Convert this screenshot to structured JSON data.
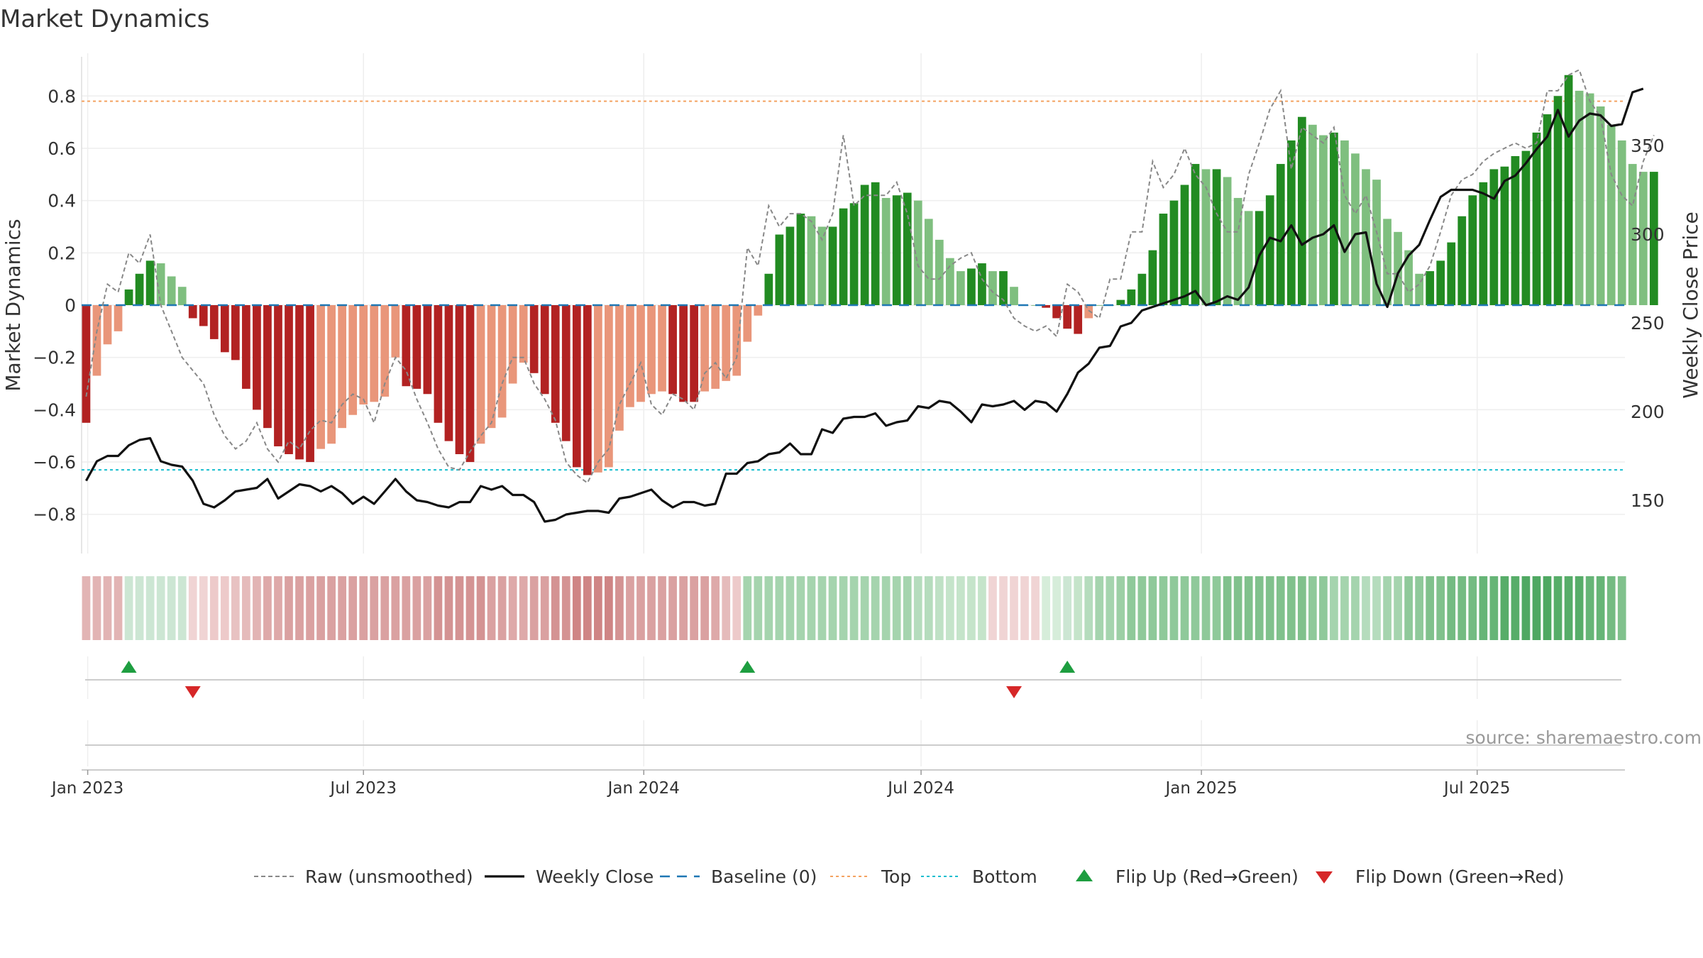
{
  "chart_data": {
    "type": "bar",
    "title": "Market Dynamics",
    "ylabel_left": "Market Dynamics",
    "ylabel_right": "Weekly Close Price",
    "ylim_left": [
      -0.95,
      0.95
    ],
    "ylim_right": [
      120,
      400
    ],
    "yticks_left": [
      -0.8,
      -0.6,
      -0.4,
      -0.2,
      0,
      0.2,
      0.4,
      0.6,
      0.8
    ],
    "yticks_left_labels": [
      "−0.8",
      "−0.6",
      "−0.4",
      "−0.2",
      "0",
      "0.2",
      "0.4",
      "0.6",
      "0.8"
    ],
    "yticks_right": [
      150,
      200,
      250,
      300,
      350
    ],
    "yticks_right_labels": [
      "150",
      "200",
      "250",
      "300",
      "350"
    ],
    "x_range": [
      "2022-12-28",
      "2025-10-06"
    ],
    "xticks": [
      {
        "date": "2023-01-01",
        "label": "Jan 2023"
      },
      {
        "date": "2023-07-01",
        "label": "Jul 2023"
      },
      {
        "date": "2024-01-01",
        "label": "Jan 2024"
      },
      {
        "date": "2024-07-01",
        "label": "Jul 2024"
      },
      {
        "date": "2025-01-01",
        "label": "Jan 2025"
      },
      {
        "date": "2025-07-01",
        "label": "Jul 2025"
      }
    ],
    "start_date": "2022-12-31",
    "week_step_days": 7,
    "grid": true,
    "legend_placement": "bottom-center",
    "source_text": "source: sharemaestro.com",
    "top_level": 0.78,
    "bottom_level": -0.63,
    "baseline": 0,
    "colors": {
      "strong_negative": "#b22222",
      "weak_negative": "#e9967a",
      "strong_positive": "#228b22",
      "weak_positive": "#7fbf7f",
      "raw_line": "#888888",
      "close_line": "#111111",
      "baseline": "#1f77b4",
      "top": "#f4a261",
      "bottom": "#17becf",
      "flip_up": "#1e9e40",
      "flip_down": "#d62728"
    },
    "series": [
      {
        "name": "Market Dynamics (smoothed)",
        "kind": "bar",
        "values": [
          -0.45,
          -0.27,
          -0.15,
          -0.1,
          0.06,
          0.12,
          0.17,
          0.16,
          0.11,
          0.07,
          -0.05,
          -0.08,
          -0.13,
          -0.18,
          -0.21,
          -0.32,
          -0.4,
          -0.47,
          -0.54,
          -0.57,
          -0.59,
          -0.6,
          -0.55,
          -0.53,
          -0.47,
          -0.42,
          -0.38,
          -0.37,
          -0.35,
          -0.2,
          -0.31,
          -0.32,
          -0.34,
          -0.45,
          -0.52,
          -0.57,
          -0.6,
          -0.53,
          -0.47,
          -0.43,
          -0.3,
          -0.22,
          -0.26,
          -0.34,
          -0.45,
          -0.52,
          -0.62,
          -0.65,
          -0.64,
          -0.62,
          -0.48,
          -0.39,
          -0.37,
          -0.34,
          -0.33,
          -0.34,
          -0.37,
          -0.37,
          -0.33,
          -0.32,
          -0.29,
          -0.27,
          -0.14,
          -0.04,
          0.12,
          0.27,
          0.3,
          0.35,
          0.34,
          0.3,
          0.3,
          0.37,
          0.39,
          0.46,
          0.47,
          0.41,
          0.42,
          0.43,
          0.4,
          0.33,
          0.25,
          0.18,
          0.13,
          0.14,
          0.16,
          0.13,
          0.13,
          0.07,
          0.0,
          0.0,
          -0.01,
          -0.05,
          -0.09,
          -0.11,
          -0.05,
          0.0,
          0.0,
          0.02,
          0.06,
          0.12,
          0.21,
          0.35,
          0.4,
          0.46,
          0.54,
          0.52,
          0.52,
          0.49,
          0.41,
          0.36,
          0.36,
          0.42,
          0.54,
          0.63,
          0.72,
          0.69,
          0.65,
          0.66,
          0.63,
          0.58,
          0.52,
          0.48,
          0.33,
          0.28,
          0.21,
          0.12,
          0.13,
          0.17,
          0.24,
          0.34,
          0.42,
          0.47,
          0.52,
          0.53,
          0.57,
          0.59,
          0.66,
          0.73,
          0.8,
          0.88,
          0.82,
          0.81,
          0.76,
          0.69,
          0.63,
          0.54,
          0.51,
          0.51
        ]
      },
      {
        "name": "Raw (unsmoothed)",
        "kind": "line",
        "values": [
          -0.35,
          -0.1,
          0.08,
          0.05,
          0.2,
          0.16,
          0.27,
          0.0,
          -0.1,
          -0.2,
          -0.25,
          -0.3,
          -0.42,
          -0.5,
          -0.55,
          -0.52,
          -0.45,
          -0.55,
          -0.6,
          -0.52,
          -0.55,
          -0.48,
          -0.44,
          -0.45,
          -0.38,
          -0.34,
          -0.36,
          -0.45,
          -0.3,
          -0.2,
          -0.25,
          -0.36,
          -0.45,
          -0.55,
          -0.62,
          -0.63,
          -0.56,
          -0.5,
          -0.45,
          -0.3,
          -0.2,
          -0.2,
          -0.3,
          -0.36,
          -0.44,
          -0.6,
          -0.65,
          -0.68,
          -0.6,
          -0.55,
          -0.38,
          -0.3,
          -0.22,
          -0.38,
          -0.42,
          -0.34,
          -0.36,
          -0.4,
          -0.26,
          -0.22,
          -0.28,
          -0.2,
          0.22,
          0.15,
          0.38,
          0.3,
          0.35,
          0.35,
          0.32,
          0.25,
          0.35,
          0.65,
          0.38,
          0.42,
          0.42,
          0.42,
          0.47,
          0.35,
          0.15,
          0.1,
          0.1,
          0.15,
          0.18,
          0.2,
          0.1,
          0.05,
          0.02,
          -0.05,
          -0.08,
          -0.1,
          -0.08,
          -0.12,
          0.08,
          0.05,
          -0.02,
          -0.05,
          0.1,
          0.1,
          0.28,
          0.28,
          0.55,
          0.45,
          0.5,
          0.6,
          0.5,
          0.45,
          0.35,
          0.28,
          0.28,
          0.5,
          0.62,
          0.75,
          0.82,
          0.52,
          0.68,
          0.65,
          0.62,
          0.68,
          0.42,
          0.35,
          0.42,
          0.28,
          0.12,
          0.12,
          0.05,
          0.08,
          0.15,
          0.28,
          0.42,
          0.48,
          0.5,
          0.55,
          0.58,
          0.6,
          0.62,
          0.6,
          0.62,
          0.82,
          0.82,
          0.88,
          0.9,
          0.78,
          0.72,
          0.5,
          0.42,
          0.38,
          0.55,
          0.65
        ]
      },
      {
        "name": "Weekly Close",
        "kind": "line",
        "axis": "right",
        "values": [
          161,
          172,
          175,
          175,
          181,
          184,
          185,
          172,
          170,
          169,
          161,
          148,
          146,
          150,
          155,
          156,
          157,
          162,
          151,
          155,
          159,
          158,
          155,
          158,
          154,
          148,
          152,
          148,
          155,
          162,
          155,
          150,
          149,
          147,
          146,
          149,
          149,
          158,
          156,
          158,
          153,
          153,
          149,
          138,
          139,
          142,
          143,
          144,
          144,
          143,
          151,
          152,
          154,
          156,
          150,
          146,
          149,
          149,
          147,
          148,
          165,
          165,
          171,
          172,
          176,
          177,
          182,
          176,
          176,
          190,
          188,
          196,
          197,
          197,
          199,
          192,
          194,
          195,
          203,
          202,
          206,
          205,
          200,
          194,
          204,
          203,
          204,
          206,
          201,
          206,
          205,
          200,
          210,
          222,
          227,
          236,
          237,
          248,
          250,
          257,
          259,
          261,
          263,
          265,
          268,
          260,
          262,
          265,
          263,
          270,
          288,
          298,
          296,
          305,
          294,
          298,
          300,
          305,
          290,
          300,
          301,
          272,
          259,
          278,
          288,
          294,
          308,
          321,
          325,
          325,
          325,
          323,
          320,
          330,
          333,
          340,
          348,
          355,
          370,
          355,
          364,
          368,
          367,
          361,
          362,
          380,
          382
        ]
      }
    ],
    "regime_strip": [
      "#e2b4b4",
      "#e2b4b4",
      "#e2b4b4",
      "#e2b4b4",
      "#cce6d3",
      "#cce6d3",
      "#cce6d3",
      "#cce6d3",
      "#cce6d3",
      "#cce6d3",
      "#f0d4d4",
      "#f0d4d4",
      "#edcaca",
      "#edcaca",
      "#e8c2c2",
      "#e5bbbb",
      "#e2b4b4",
      "#dea9a9",
      "#dea9a9",
      "#daa1a1",
      "#daa1a1",
      "#daa1a1",
      "#daa1a1",
      "#daa1a1",
      "#daa1a1",
      "#daa1a1",
      "#daa1a1",
      "#daa1a1",
      "#daa1a1",
      "#daa1a1",
      "#daa1a1",
      "#daa1a1",
      "#daa1a1",
      "#d49393",
      "#d49393",
      "#d49393",
      "#d49393",
      "#d49393",
      "#daa1a1",
      "#daa1a1",
      "#dea9a9",
      "#dea9a9",
      "#daa1a1",
      "#daa1a1",
      "#d49393",
      "#d49393",
      "#cf8585",
      "#cf8585",
      "#cf8585",
      "#cf8585",
      "#d49393",
      "#daa1a1",
      "#daa1a1",
      "#daa1a1",
      "#daa1a1",
      "#daa1a1",
      "#daa1a1",
      "#daa1a1",
      "#daa1a1",
      "#dea9a9",
      "#e5bbbb",
      "#edcaca",
      "#a5d4ae",
      "#a5d4ae",
      "#a5d4ae",
      "#a5d4ae",
      "#a5d4ae",
      "#a5d4ae",
      "#a5d4ae",
      "#a5d4ae",
      "#a5d4ae",
      "#a5d4ae",
      "#a5d4ae",
      "#a5d4ae",
      "#a5d4ae",
      "#a5d4ae",
      "#a5d4ae",
      "#a5d4ae",
      "#b5dcbd",
      "#b5dcbd",
      "#bfe1c5",
      "#c5e4ca",
      "#c5e4ca",
      "#c5e4ca",
      "#c5e4ca",
      "#f0d4d4",
      "#f0d4d4",
      "#f0d4d4",
      "#f0d4d4",
      "#f0d4d4",
      "#d6edda",
      "#d6edda",
      "#cce6d3",
      "#c5e4ca",
      "#b5dcbd",
      "#a5d4ae",
      "#a5d4ae",
      "#9ccfa5",
      "#8fc99a",
      "#8fc99a",
      "#8fc99a",
      "#8fc99a",
      "#8fc99a",
      "#8fc99a",
      "#8fc99a",
      "#8fc99a",
      "#8fc99a",
      "#80c18c",
      "#80c18c",
      "#80c18c",
      "#80c18c",
      "#80c18c",
      "#80c18c",
      "#80c18c",
      "#80c18c",
      "#8fc99a",
      "#8fc99a",
      "#a5d4ae",
      "#a5d4ae",
      "#a5d4ae",
      "#b5dcbd",
      "#b5dcbd",
      "#a5d4ae",
      "#a5d4ae",
      "#8fc99a",
      "#8fc99a",
      "#80c18c",
      "#80c18c",
      "#74bb82",
      "#74bb82",
      "#74bb82",
      "#66b577",
      "#66b577",
      "#57ad69",
      "#57ad69",
      "#4fa862",
      "#4fa862",
      "#4fa862",
      "#57ad69",
      "#57ad69",
      "#57ad69",
      "#66b577",
      "#66b577",
      "#74bb82",
      "#80c18c"
    ],
    "flip_up_dates": [
      "2023-01-28",
      "2024-03-09",
      "2024-10-05"
    ],
    "flip_down_dates": [
      "2023-03-11",
      "2024-08-31"
    ],
    "legend": [
      {
        "label": "Raw (unsmoothed)",
        "style": "dash-gray"
      },
      {
        "label": "Weekly Close",
        "style": "solid-black"
      },
      {
        "label": "Baseline (0)",
        "style": "dash-blue"
      },
      {
        "label": "Top",
        "style": "dot-orange"
      },
      {
        "label": "Bottom",
        "style": "dot-cyan"
      },
      {
        "label": "Flip Up (Red→Green)",
        "style": "triangle-up"
      },
      {
        "label": "Flip Down (Green→Red)",
        "style": "triangle-down"
      }
    ]
  }
}
